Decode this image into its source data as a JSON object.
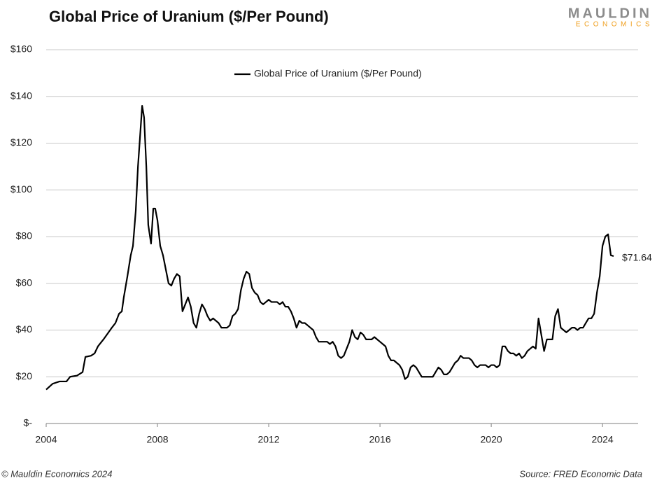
{
  "chart_data": {
    "type": "line",
    "title": "Global Price of Uranium ($/Per Pound)",
    "logo": "MAULDIN",
    "logo_subtitle": "ECONOMICS",
    "footer_left": "© Mauldin Economics 2024",
    "footer_right": "Source: FRED Economic Data",
    "legend": "top",
    "grid": true,
    "xlim": [
      2004,
      2025.28
    ],
    "xticks": [
      2004,
      2008,
      2012,
      2016,
      2020,
      2024
    ],
    "ylim": [
      0,
      160
    ],
    "yticks": [
      {
        "value": 0,
        "label": "$-"
      },
      {
        "value": 20,
        "label": "$20"
      },
      {
        "value": 40,
        "label": "$40"
      },
      {
        "value": 60,
        "label": "$60"
      },
      {
        "value": 80,
        "label": "$80"
      },
      {
        "value": 100,
        "label": "$100"
      },
      {
        "value": 120,
        "label": "$120"
      },
      {
        "value": 140,
        "label": "$140"
      },
      {
        "value": 160,
        "label": "$160"
      }
    ],
    "x": [
      2004.0,
      2004.23,
      2004.48,
      2004.73,
      2004.86,
      2005.11,
      2005.31,
      2005.41,
      2005.61,
      2005.74,
      2005.86,
      2006.06,
      2006.24,
      2006.36,
      2006.49,
      2006.62,
      2006.72,
      2006.79,
      2006.92,
      2007.04,
      2007.12,
      2007.22,
      2007.3,
      2007.37,
      2007.45,
      2007.52,
      2007.6,
      2007.67,
      2007.77,
      2007.85,
      2007.92,
      2008,
      2008.1,
      2008.2,
      2008.3,
      2008.4,
      2008.5,
      2008.6,
      2008.7,
      2008.8,
      2008.9,
      2009,
      2009.1,
      2009.2,
      2009.3,
      2009.4,
      2009.5,
      2009.6,
      2009.7,
      2009.8,
      2009.9,
      2010,
      2010.1,
      2010.2,
      2010.3,
      2010.4,
      2010.5,
      2010.6,
      2010.7,
      2010.8,
      2010.9,
      2011,
      2011.1,
      2011.2,
      2011.3,
      2011.4,
      2011.5,
      2011.6,
      2011.7,
      2011.8,
      2011.9,
      2012,
      2012.1,
      2012.2,
      2012.3,
      2012.4,
      2012.5,
      2012.6,
      2012.7,
      2012.8,
      2012.9,
      2013,
      2013.1,
      2013.2,
      2013.3,
      2013.4,
      2013.5,
      2013.6,
      2013.7,
      2013.8,
      2013.9,
      2014,
      2014.1,
      2014.2,
      2014.3,
      2014.4,
      2014.5,
      2014.6,
      2014.7,
      2014.8,
      2014.9,
      2015,
      2015.1,
      2015.2,
      2015.3,
      2015.4,
      2015.5,
      2015.6,
      2015.7,
      2015.8,
      2015.9,
      2016,
      2016.1,
      2016.2,
      2016.3,
      2016.4,
      2016.5,
      2016.6,
      2016.7,
      2016.8,
      2016.9,
      2017,
      2017.1,
      2017.2,
      2017.3,
      2017.4,
      2017.5,
      2017.6,
      2017.7,
      2017.8,
      2017.9,
      2018,
      2018.1,
      2018.2,
      2018.3,
      2018.4,
      2018.5,
      2018.6,
      2018.7,
      2018.8,
      2018.9,
      2019,
      2019.1,
      2019.2,
      2019.3,
      2019.4,
      2019.5,
      2019.6,
      2019.7,
      2019.8,
      2019.9,
      2020,
      2020.1,
      2020.2,
      2020.3,
      2020.4,
      2020.5,
      2020.6,
      2020.7,
      2020.8,
      2020.9,
      2021,
      2021.1,
      2021.2,
      2021.3,
      2021.4,
      2021.5,
      2021.6,
      2021.7,
      2021.8,
      2021.9,
      2022,
      2022.1,
      2022.2,
      2022.3,
      2022.4,
      2022.5,
      2022.6,
      2022.7,
      2022.8,
      2022.9,
      2023,
      2023.1,
      2023.2,
      2023.3,
      2023.4,
      2023.5,
      2023.6,
      2023.7,
      2023.8,
      2023.9,
      2024,
      2024.1,
      2024.2,
      2024.3,
      2024.4
    ],
    "series": [
      {
        "name": "Global Price of Uranium ($/Per Pound)",
        "color": "#000000",
        "end_label": "$71.64",
        "values": [
          14.5,
          17,
          18,
          18,
          20,
          20.5,
          22,
          28.5,
          29,
          30,
          33,
          36,
          39,
          41,
          43,
          47,
          48,
          54,
          63,
          72,
          76,
          91,
          110,
          122,
          136,
          131,
          110,
          85,
          77,
          92,
          92,
          87,
          76,
          72,
          66,
          60,
          59,
          62,
          64,
          63,
          48,
          51,
          54,
          50,
          43,
          41,
          47,
          51,
          49,
          46,
          44,
          45,
          44,
          43,
          41,
          41,
          41,
          42,
          46,
          47,
          49,
          57,
          62,
          65,
          64,
          58,
          56,
          55,
          52,
          51,
          52,
          53,
          52,
          52,
          52,
          51,
          52,
          50,
          50,
          48,
          45,
          41,
          44,
          43,
          43,
          42,
          41,
          40,
          37,
          35,
          35,
          35,
          35,
          34,
          35,
          33,
          29,
          28,
          29,
          32,
          35,
          40,
          37,
          36,
          39,
          38,
          36,
          36,
          36,
          37,
          36,
          35,
          34,
          33,
          29,
          27,
          27,
          26,
          25,
          23,
          19,
          20,
          24,
          25,
          24,
          22,
          20,
          20,
          20,
          20,
          20,
          22,
          24,
          23,
          21,
          21,
          22,
          24,
          26,
          27,
          29,
          28,
          28,
          28,
          27,
          25,
          24,
          25,
          25,
          25,
          24,
          25,
          25,
          24,
          25,
          33,
          33,
          31,
          30,
          30,
          29,
          30,
          28,
          29,
          31,
          32,
          33,
          32,
          45,
          38,
          31,
          36,
          36,
          36,
          46,
          49,
          41,
          40,
          39,
          40,
          41,
          41,
          40,
          41,
          41,
          43,
          45,
          45,
          47,
          56,
          63,
          76,
          80,
          81,
          72,
          71.64
        ]
      }
    ]
  }
}
